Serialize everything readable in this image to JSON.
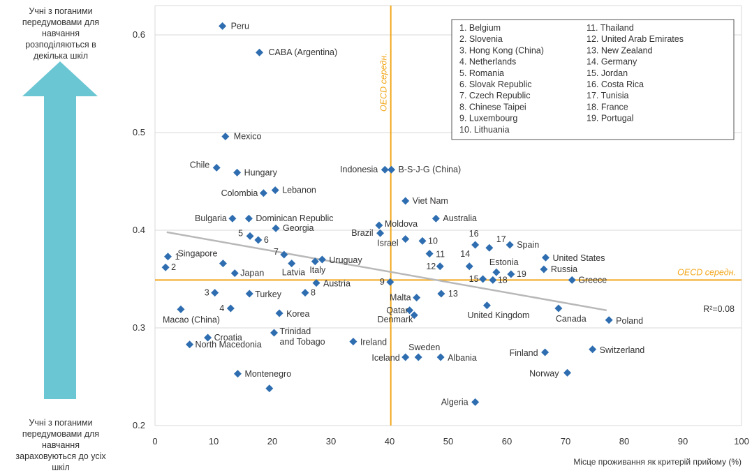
{
  "side_notes": {
    "top": "Учні з поганими передумовами для навчання розподіляються в декілька шкіл",
    "bottom": "Учні з поганими передумовами для навчання зараховуються до усіх шкіл"
  },
  "colors": {
    "marker": "#2E6DB0",
    "reference": "#F2A81D",
    "trend": "#B8B8B8",
    "arrow": "#6BC6D3",
    "grid": "#D9D9D9"
  },
  "chart_data": {
    "type": "scatter",
    "xlabel": "Місце проживання як критерій прийому (%)",
    "ylabel": "",
    "xlim": [
      0,
      100
    ],
    "ylim": [
      0.2,
      0.63
    ],
    "xticks": [
      0,
      10,
      20,
      30,
      40,
      50,
      60,
      70,
      80,
      90,
      100
    ],
    "yticks": [
      0.2,
      0.3,
      0.4,
      0.5,
      0.6
    ],
    "ytick_labels": [
      "0.2",
      "0.3",
      "0.4",
      "0.5",
      "0.6"
    ],
    "grid": "horizontal",
    "reference_lines": {
      "x": 40.2,
      "y": 0.349,
      "x_label": "OECD середн.",
      "y_label": "OECD середн."
    },
    "trend": {
      "x": [
        2,
        77
      ],
      "y": [
        0.398,
        0.318
      ],
      "label": "R²=0.08"
    },
    "points": [
      {
        "label": "Peru",
        "x": 11.5,
        "y": 0.609
      },
      {
        "label": "CABA (Argentina)",
        "x": 17.8,
        "y": 0.582
      },
      {
        "label": "Mexico",
        "x": 12,
        "y": 0.496
      },
      {
        "label": "Chile",
        "x": 10.5,
        "y": 0.464
      },
      {
        "label": "Hungary",
        "x": 14,
        "y": 0.459
      },
      {
        "label": "Indonesia",
        "x": 39.2,
        "y": 0.462
      },
      {
        "label": "B-S-J-G (China)",
        "x": 40.3,
        "y": 0.462
      },
      {
        "label": "Colombia",
        "x": 18.5,
        "y": 0.438
      },
      {
        "label": "Lebanon",
        "x": 20.5,
        "y": 0.441
      },
      {
        "label": "Viet Nam",
        "x": 42.7,
        "y": 0.43
      },
      {
        "label": "Bulgaria",
        "x": 13.2,
        "y": 0.412
      },
      {
        "label": "Dominican Republic",
        "x": 16,
        "y": 0.412
      },
      {
        "label": "Australia",
        "x": 47.9,
        "y": 0.412
      },
      {
        "label": "Georgia",
        "x": 20.6,
        "y": 0.402
      },
      {
        "label": "Moldova",
        "x": 38.2,
        "y": 0.405
      },
      {
        "label": "Brazil",
        "x": 38.4,
        "y": 0.397
      },
      {
        "label": "5",
        "x": 16.2,
        "y": 0.394
      },
      {
        "label": "6",
        "x": 17.6,
        "y": 0.39
      },
      {
        "label": "Israel",
        "x": 42.7,
        "y": 0.391
      },
      {
        "label": "10",
        "x": 45.6,
        "y": 0.389
      },
      {
        "label": "16",
        "x": 54.6,
        "y": 0.385
      },
      {
        "label": "17",
        "x": 57,
        "y": 0.382
      },
      {
        "label": "Spain",
        "x": 60.5,
        "y": 0.385
      },
      {
        "label": "11",
        "x": 46.8,
        "y": 0.376
      },
      {
        "label": "1",
        "x": 2.2,
        "y": 0.373
      },
      {
        "label": "United States",
        "x": 66.6,
        "y": 0.372
      },
      {
        "label": "7",
        "x": 22,
        "y": 0.375
      },
      {
        "label": "Uruguay",
        "x": 28.5,
        "y": 0.37
      },
      {
        "label": "Italy",
        "x": 27.3,
        "y": 0.368
      },
      {
        "label": "Singapore",
        "x": 11.6,
        "y": 0.366
      },
      {
        "label": "Latvia",
        "x": 23.3,
        "y": 0.366
      },
      {
        "label": "14",
        "x": 53.6,
        "y": 0.363
      },
      {
        "label": "12",
        "x": 48.6,
        "y": 0.363
      },
      {
        "label": "2",
        "x": 1.8,
        "y": 0.362
      },
      {
        "label": "Russia",
        "x": 66.3,
        "y": 0.36
      },
      {
        "label": "Estonia",
        "x": 58.2,
        "y": 0.357
      },
      {
        "label": "Japan",
        "x": 13.6,
        "y": 0.356
      },
      {
        "label": "19",
        "x": 60.7,
        "y": 0.355
      },
      {
        "label": "15",
        "x": 55.9,
        "y": 0.35
      },
      {
        "label": "18",
        "x": 57.6,
        "y": 0.349
      },
      {
        "label": "9",
        "x": 40.1,
        "y": 0.347
      },
      {
        "label": "Austria",
        "x": 27.5,
        "y": 0.346
      },
      {
        "label": "Greece",
        "x": 71.1,
        "y": 0.349
      },
      {
        "label": "8",
        "x": 25.6,
        "y": 0.336
      },
      {
        "label": "3",
        "x": 10.2,
        "y": 0.336
      },
      {
        "label": "Turkey",
        "x": 16.1,
        "y": 0.335
      },
      {
        "label": "13",
        "x": 48.8,
        "y": 0.335
      },
      {
        "label": "Malta",
        "x": 44.6,
        "y": 0.331
      },
      {
        "label": "United Kingdom",
        "x": 56.6,
        "y": 0.323
      },
      {
        "label": "4",
        "x": 12.9,
        "y": 0.32
      },
      {
        "label": "Macao (China)",
        "x": 4.4,
        "y": 0.319
      },
      {
        "label": "Qatar",
        "x": 43.4,
        "y": 0.318
      },
      {
        "label": "Canada",
        "x": 68.8,
        "y": 0.32
      },
      {
        "label": "Korea",
        "x": 21.2,
        "y": 0.315
      },
      {
        "label": "Denmark",
        "x": 44.2,
        "y": 0.313
      },
      {
        "label": "Poland",
        "x": 77.4,
        "y": 0.308
      },
      {
        "label": "Trinidad and Tobago",
        "x": 20.3,
        "y": 0.295
      },
      {
        "label": "Croatia",
        "x": 9,
        "y": 0.29
      },
      {
        "label": "Ireland",
        "x": 33.8,
        "y": 0.286
      },
      {
        "label": "North Macedonia",
        "x": 5.9,
        "y": 0.283
      },
      {
        "label": "Switzerland",
        "x": 74.6,
        "y": 0.278
      },
      {
        "label": "Finland",
        "x": 66.5,
        "y": 0.275
      },
      {
        "label": "Iceland",
        "x": 42.7,
        "y": 0.27
      },
      {
        "label": "Sweden",
        "x": 44.9,
        "y": 0.27
      },
      {
        "label": "Albania",
        "x": 48.7,
        "y": 0.27
      },
      {
        "label": "Montenegro",
        "x": 14.1,
        "y": 0.253
      },
      {
        "label": "Norway",
        "x": 70.3,
        "y": 0.254
      },
      {
        "label": "Algeria",
        "x": 54.6,
        "y": 0.224
      },
      {
        "label": "",
        "x": 19.5,
        "y": 0.238
      }
    ],
    "legend": {
      "col1": [
        "1. Belgium",
        "2. Slovenia",
        "3. Hong Kong (China)",
        "4. Netherlands",
        "5. Romania",
        "6. Slovak Republic",
        "7. Czech Republic",
        "8. Chinese Taipei",
        "9. Luxembourg",
        "10. Lithuania"
      ],
      "col2": [
        "11. Thailand",
        "12. United Arab Emirates",
        "13. New Zealand",
        "14. Germany",
        "15. Jordan",
        "16. Costa Rica",
        "17. Tunisia",
        "18. France",
        "19. Portugal"
      ]
    }
  }
}
